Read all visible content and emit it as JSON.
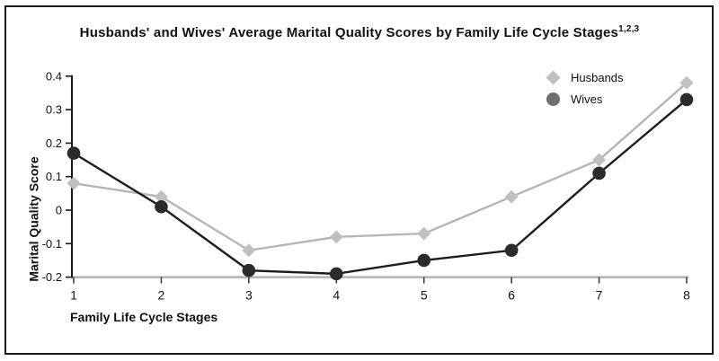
{
  "chart_data": {
    "type": "line",
    "title": "Husbands' and Wives' Average Marital Quality Scores by Family Life Cycle Stages",
    "title_superscript": "1,2,3",
    "xlabel": "Family Life Cycle Stages",
    "ylabel": "Marital Quality Score",
    "categories": [
      "1",
      "2",
      "3",
      "4",
      "5",
      "6",
      "7",
      "8"
    ],
    "y_ticks": [
      "0.4",
      "0.3",
      "0.2",
      "0.1",
      "0",
      "-0.1",
      "-0.2"
    ],
    "ylim": [
      -0.2,
      0.4
    ],
    "grid": "off",
    "legend_position": "top-right",
    "baseline_value": -0.2,
    "series": [
      {
        "name": "Husbands",
        "marker": "diamond",
        "line_color": "#b5b5b5",
        "marker_color": "#c0c0c0",
        "legend_marker_color": "#c0c0c0",
        "values": [
          0.08,
          0.04,
          -0.12,
          -0.08,
          -0.07,
          0.04,
          0.15,
          0.38
        ]
      },
      {
        "name": "Wives",
        "marker": "circle",
        "line_color": "#1c1c1c",
        "marker_color": "#2b2b2b",
        "legend_marker_color": "#6e6e6e",
        "values": [
          0.17,
          0.01,
          -0.18,
          -0.19,
          -0.15,
          -0.12,
          0.11,
          0.33
        ]
      }
    ],
    "axis_colors": {
      "y_axis": "#1a1a1a",
      "baseline": "#b3b3b3",
      "tick": "#3d3d3d",
      "label": "#111111"
    }
  }
}
